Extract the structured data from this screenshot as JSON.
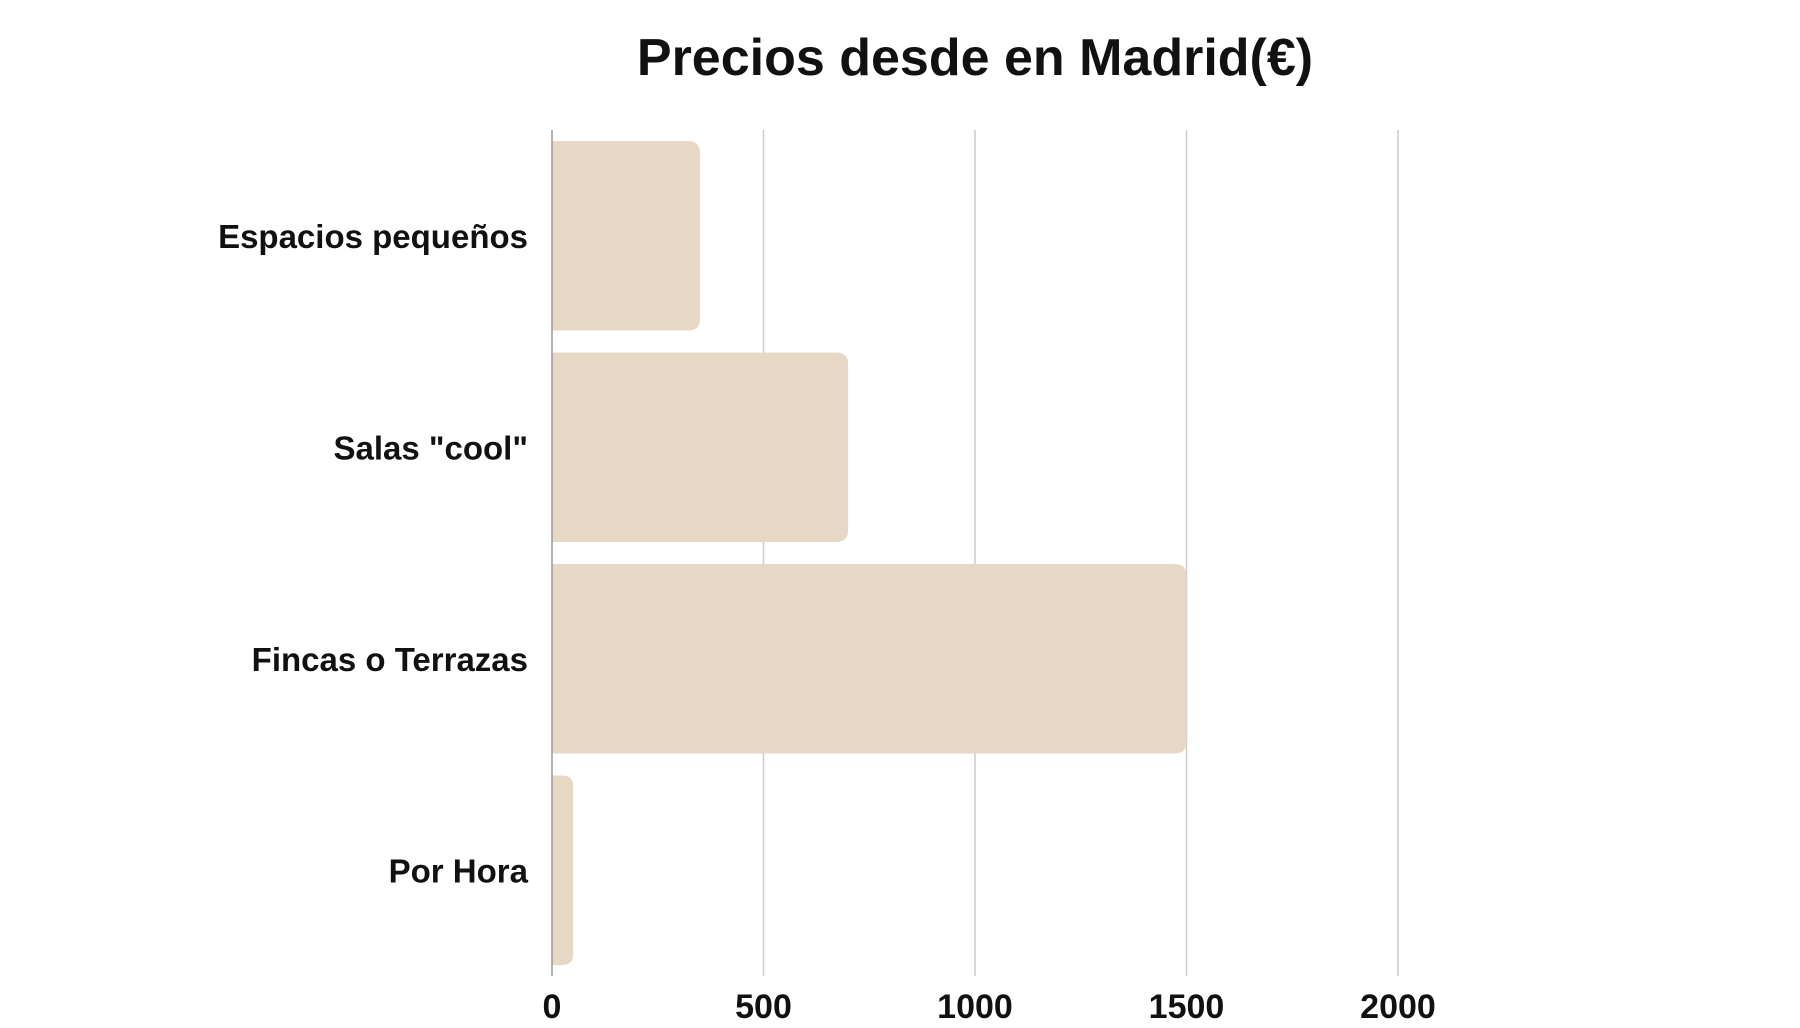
{
  "chart_data": {
    "type": "bar",
    "orientation": "horizontal",
    "title": "Precios desde en Madrid(€)",
    "xlabel": "",
    "ylabel": "",
    "categories": [
      "Espacios pequeños",
      "Salas \"cool\"",
      "Fincas o Terrazas",
      "Por Hora"
    ],
    "values": [
      350,
      700,
      1500,
      50
    ],
    "xlim": [
      0,
      2000
    ],
    "xticks": [
      "0",
      "500",
      "1000",
      "1500",
      "2000"
    ],
    "grid": true,
    "bar_color": "#e7d8c6",
    "grid_color": "#cccccc"
  }
}
